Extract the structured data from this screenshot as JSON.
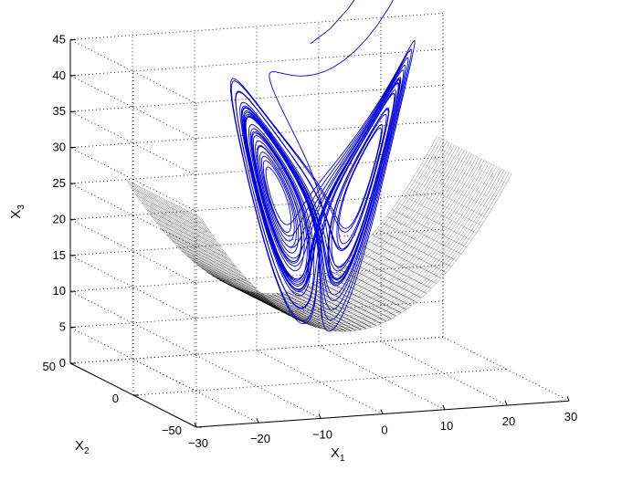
{
  "chart_data": {
    "type": "3d-line-surface",
    "title": "",
    "axes": {
      "x1": {
        "label": "X",
        "subscript": "1",
        "range": [
          -30,
          30
        ],
        "ticks": [
          -30,
          -20,
          -10,
          0,
          10,
          20,
          30
        ]
      },
      "x2": {
        "label": "X",
        "subscript": "2",
        "range": [
          -50,
          50
        ],
        "ticks": [
          -50,
          0,
          50
        ]
      },
      "x3": {
        "label": "X",
        "subscript": "3",
        "range": [
          0,
          45
        ],
        "ticks": [
          0,
          5,
          10,
          15,
          20,
          25,
          30,
          35,
          40,
          45
        ]
      }
    },
    "grid": true,
    "series": [
      {
        "kind": "trajectory",
        "color": "#0000dd"
      },
      {
        "kind": "surface",
        "color": "#000000"
      }
    ]
  }
}
